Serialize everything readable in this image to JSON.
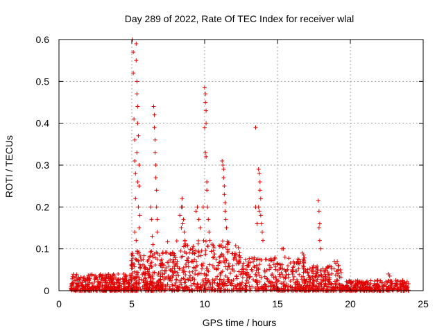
{
  "chart_data": {
    "type": "scatter",
    "title": "Day 289 of 2022, Rate Of TEC Index for receiver wlal",
    "xlabel": "GPS time / hours",
    "ylabel": "ROTI / TECUs",
    "xlim": [
      0,
      25
    ],
    "ylim": [
      0,
      0.6
    ],
    "xticks": [
      "0",
      "5",
      "10",
      "15",
      "20",
      "25"
    ],
    "yticks": [
      "0",
      "0.1",
      "0.2",
      "0.3",
      "0.4",
      "0.5",
      "0.6"
    ],
    "grid": true,
    "marker": "+",
    "color": "#e00000",
    "series": [
      {
        "points": [
          [
            5.05,
            0.6
          ],
          [
            5.1,
            0.57
          ],
          [
            5.1,
            0.52
          ],
          [
            5.15,
            0.41
          ],
          [
            5.2,
            0.36
          ],
          [
            5.2,
            0.31
          ],
          [
            5.25,
            0.28
          ],
          [
            5.25,
            0.22
          ],
          [
            5.3,
            0.59
          ],
          [
            5.3,
            0.55
          ],
          [
            5.35,
            0.5
          ],
          [
            5.35,
            0.47
          ],
          [
            5.4,
            0.44
          ],
          [
            5.4,
            0.4
          ],
          [
            5.45,
            0.37
          ],
          [
            5.5,
            0.3
          ],
          [
            5.5,
            0.25
          ],
          [
            5.55,
            0.18
          ],
          [
            5.35,
            0.33
          ],
          [
            5.4,
            0.26
          ],
          [
            5.45,
            0.2
          ],
          [
            5.5,
            0.15
          ],
          [
            5.3,
            0.12
          ],
          [
            5.2,
            0.14
          ],
          [
            6.3,
            0.2
          ],
          [
            6.35,
            0.17
          ],
          [
            6.4,
            0.13
          ],
          [
            6.45,
            0.11
          ],
          [
            6.5,
            0.44
          ],
          [
            6.55,
            0.42
          ],
          [
            6.55,
            0.39
          ],
          [
            6.6,
            0.36
          ],
          [
            6.6,
            0.33
          ],
          [
            6.65,
            0.3
          ],
          [
            6.65,
            0.27
          ],
          [
            6.7,
            0.24
          ],
          [
            6.7,
            0.2
          ],
          [
            6.75,
            0.17
          ],
          [
            6.75,
            0.14
          ],
          [
            8.3,
            0.18
          ],
          [
            8.4,
            0.2
          ],
          [
            8.45,
            0.22
          ],
          [
            8.5,
            0.2
          ],
          [
            8.55,
            0.17
          ],
          [
            8.6,
            0.14
          ],
          [
            8.65,
            0.12
          ],
          [
            8.5,
            0.16
          ],
          [
            8.4,
            0.15
          ],
          [
            9.4,
            0.19
          ],
          [
            9.5,
            0.2
          ],
          [
            9.6,
            0.17
          ],
          [
            9.7,
            0.15
          ],
          [
            10.0,
            0.485
          ],
          [
            10.05,
            0.47
          ],
          [
            10.05,
            0.45
          ],
          [
            10.1,
            0.43
          ],
          [
            10.1,
            0.4
          ],
          [
            10.0,
            0.39
          ],
          [
            10.05,
            0.33
          ],
          [
            10.1,
            0.32
          ],
          [
            10.15,
            0.26
          ],
          [
            10.15,
            0.24
          ],
          [
            10.2,
            0.2
          ],
          [
            10.25,
            0.17
          ],
          [
            10.3,
            0.14
          ],
          [
            10.35,
            0.12
          ],
          [
            9.9,
            0.2
          ],
          [
            11.2,
            0.31
          ],
          [
            11.25,
            0.3
          ],
          [
            11.3,
            0.29
          ],
          [
            11.3,
            0.27
          ],
          [
            11.35,
            0.25
          ],
          [
            11.35,
            0.23
          ],
          [
            11.4,
            0.21
          ],
          [
            11.4,
            0.19
          ],
          [
            11.45,
            0.17
          ],
          [
            11.5,
            0.15
          ],
          [
            13.5,
            0.39
          ],
          [
            13.7,
            0.29
          ],
          [
            13.75,
            0.28
          ],
          [
            13.8,
            0.26
          ],
          [
            13.8,
            0.24
          ],
          [
            13.85,
            0.22
          ],
          [
            13.7,
            0.2
          ],
          [
            13.75,
            0.19
          ],
          [
            13.85,
            0.18
          ],
          [
            13.9,
            0.16
          ],
          [
            13.95,
            0.14
          ],
          [
            14.0,
            0.12
          ],
          [
            13.6,
            0.16
          ],
          [
            13.5,
            0.2
          ],
          [
            15.3,
            0.1
          ],
          [
            15.4,
            0.1
          ],
          [
            16.7,
            0.09
          ],
          [
            16.8,
            0.085
          ],
          [
            17.8,
            0.215
          ],
          [
            17.85,
            0.19
          ],
          [
            17.9,
            0.16
          ],
          [
            17.85,
            0.15
          ],
          [
            17.9,
            0.12
          ],
          [
            17.95,
            0.1
          ],
          [
            18.9,
            0.07
          ],
          [
            19.0,
            0.065
          ],
          [
            19.1,
            0.07
          ],
          [
            19.2,
            0.06
          ],
          [
            22.6,
            0.04
          ],
          [
            22.7,
            0.035
          ]
        ]
      }
    ],
    "background_clusters": [
      {
        "x_range": [
          0.8,
          4.9
        ],
        "y_range": [
          0.0,
          0.04
        ],
        "count": 380
      },
      {
        "x_range": [
          4.9,
          7.2
        ],
        "y_range": [
          0.0,
          0.1
        ],
        "count": 260
      },
      {
        "x_range": [
          7.2,
          12.5
        ],
        "y_range": [
          0.0,
          0.12
        ],
        "count": 420
      },
      {
        "x_range": [
          12.5,
          17.0
        ],
        "y_range": [
          0.0,
          0.08
        ],
        "count": 320
      },
      {
        "x_range": [
          17.0,
          19.5
        ],
        "y_range": [
          0.0,
          0.06
        ],
        "count": 200
      },
      {
        "x_range": [
          19.5,
          24.0
        ],
        "y_range": [
          0.0,
          0.025
        ],
        "count": 300
      }
    ]
  }
}
